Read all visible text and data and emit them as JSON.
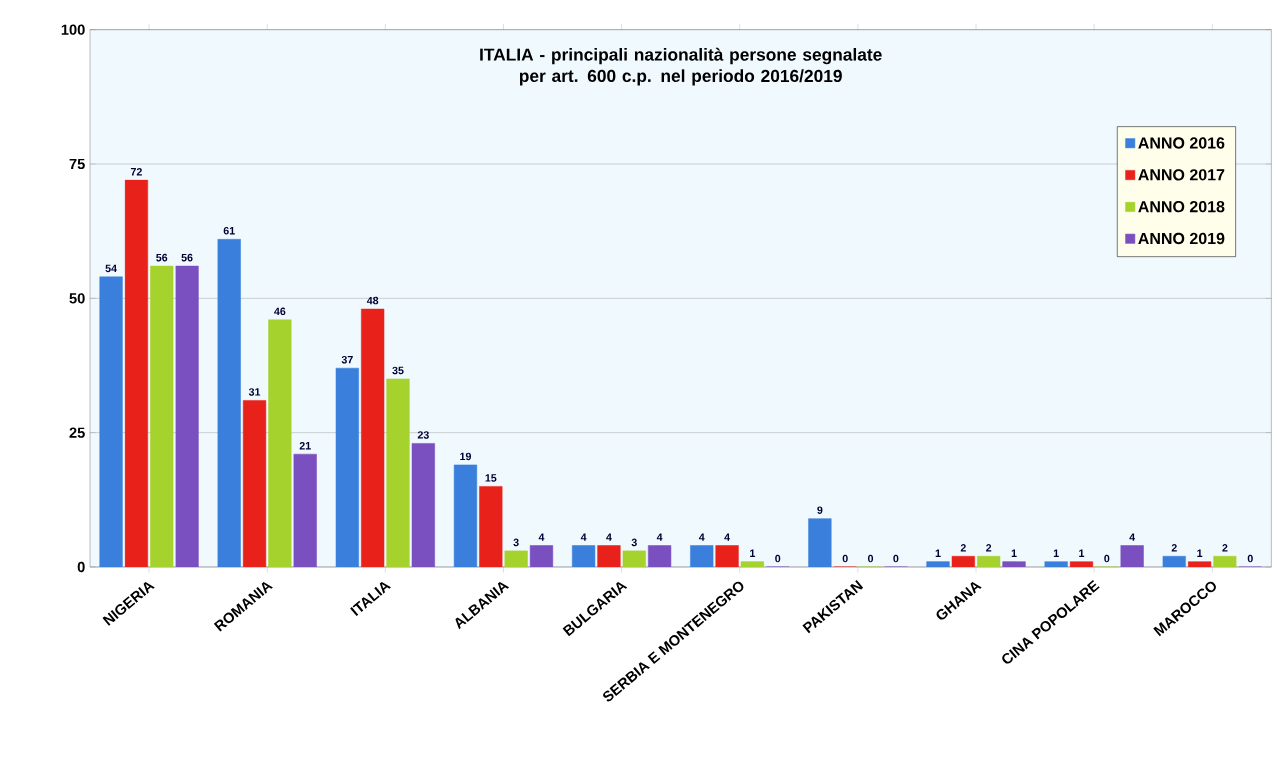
{
  "chart_data": {
    "type": "bar",
    "title": "ITALIA - principali nazionalità persone segnalate per art. 600 c.p. nel periodo 2016/2019",
    "categories": [
      "NIGERIA",
      "ROMANIA",
      "ITALIA",
      "ALBANIA",
      "BULGARIA",
      "SERBIA E MONTENEGRO",
      "PAKISTAN",
      "GHANA",
      "CINA POPOLARE",
      "MAROCCO"
    ],
    "series": [
      {
        "name": "ANNO 2016",
        "color": "#3a7fdc",
        "values": [
          54,
          61,
          37,
          19,
          4,
          4,
          9,
          1,
          1,
          2
        ]
      },
      {
        "name": "ANNO 2017",
        "color": "#e8221b",
        "values": [
          72,
          31,
          48,
          15,
          4,
          4,
          0,
          2,
          1,
          1
        ]
      },
      {
        "name": "ANNO 2018",
        "color": "#a6d22e",
        "values": [
          56,
          46,
          35,
          3,
          3,
          1,
          0,
          2,
          0,
          2
        ]
      },
      {
        "name": "ANNO 2019",
        "color": "#7a4fbf",
        "values": [
          56,
          21,
          23,
          4,
          4,
          0,
          0,
          1,
          4,
          0
        ]
      }
    ],
    "ylim": [
      0,
      100
    ],
    "yticks": [
      0,
      25,
      50,
      75,
      100
    ],
    "grid": "y",
    "legend": "top right",
    "data_labels": true
  }
}
